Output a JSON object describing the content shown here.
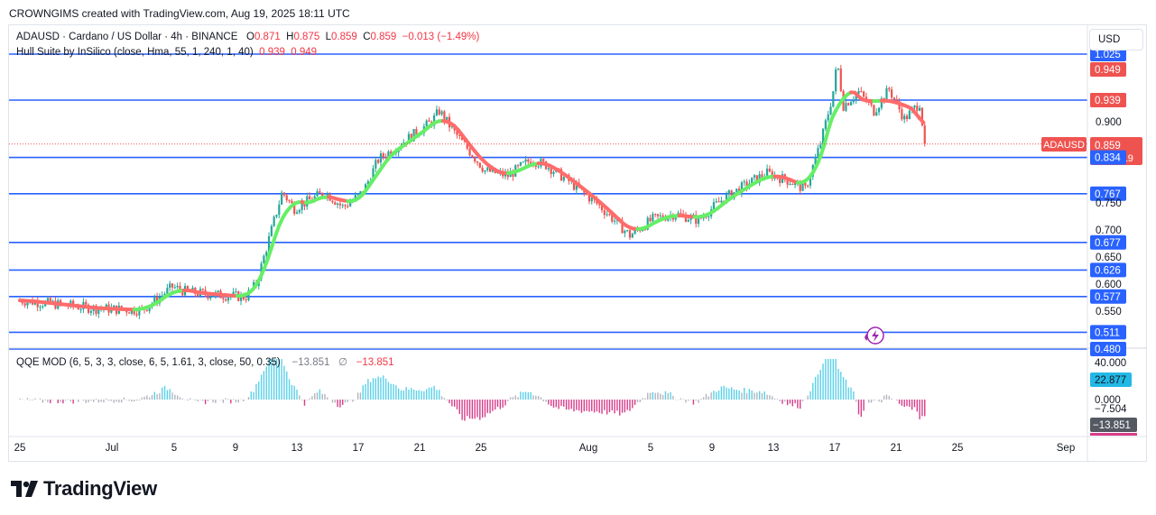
{
  "header": {
    "credit": "CROWNGIMS created with TradingView.com, Aug 19, 2025 18:11 UTC"
  },
  "legend": {
    "symbol": "ADAUSD · Cardano / US Dollar · 4h · BINANCE",
    "o_label": "O",
    "o_value": "0.871",
    "h_label": "H",
    "h_value": "0.875",
    "l_label": "L",
    "l_value": "0.859",
    "c_label": "C",
    "c_value": "0.859",
    "change": "−0.013 (−1.49%)",
    "indicator": "Hull Suite by InSilico (close, Hma, 55, 1, 240, 1, 40)",
    "ind_val1": "0.939",
    "ind_val2": "0.949",
    "qqe_name": "QQE MOD (6, 5, 3, 3, close, 6, 5, 1.61, 3, close, 50, 0.35)",
    "qqe_val1": "−13.851",
    "qqe_sym": "∅",
    "qqe_val2": "−13.851"
  },
  "currency_button": "USD",
  "branding": {
    "logo_text": "TradingView"
  },
  "colors": {
    "up": "#26a69a",
    "down": "#ef5350",
    "level": "#2962ff",
    "hull_up": "#66ee66",
    "hull_down": "#ff6b6b",
    "qqe_up": "#5ad0e8",
    "qqe_neutral": "#b2b5be",
    "qqe_down": "#d63d8a"
  },
  "chart_data": {
    "type": "candlestick",
    "symbol": "ADAUSD",
    "timeframe": "4h",
    "x_ticks": [
      "25",
      "Jul",
      "5",
      "9",
      "13",
      "17",
      "21",
      "25",
      "Aug",
      "5",
      "9",
      "13",
      "17",
      "21",
      "25",
      "Sep"
    ],
    "y_ticks": [
      "0.900",
      "0.750",
      "0.700",
      "0.650",
      "0.600",
      "0.550"
    ],
    "horizontal_levels": [
      "1.025",
      "0.940",
      "0.834",
      "0.767",
      "0.677",
      "0.626",
      "0.577",
      "0.511",
      "0.480"
    ],
    "price_labels": [
      {
        "text": "1.025",
        "kind": "level"
      },
      {
        "text": "0.949",
        "kind": "hull-red"
      },
      {
        "text": "0.940",
        "kind": "level"
      },
      {
        "text": "0.939",
        "kind": "hull-red"
      },
      {
        "text": "0.900",
        "kind": "tick"
      },
      {
        "text": "0.859",
        "kind": "price",
        "ticker": "ADAUSD",
        "countdown": "01:48:19"
      },
      {
        "text": "0.834",
        "kind": "level"
      },
      {
        "text": "0.767",
        "kind": "level"
      },
      {
        "text": "0.750",
        "kind": "tick"
      },
      {
        "text": "0.700",
        "kind": "tick"
      },
      {
        "text": "0.677",
        "kind": "level"
      },
      {
        "text": "0.650",
        "kind": "tick"
      },
      {
        "text": "0.626",
        "kind": "level"
      },
      {
        "text": "0.600",
        "kind": "tick"
      },
      {
        "text": "0.577",
        "kind": "level"
      },
      {
        "text": "0.550",
        "kind": "tick"
      },
      {
        "text": "0.511",
        "kind": "level"
      },
      {
        "text": "0.480",
        "kind": "level"
      }
    ],
    "path_anchors": [
      {
        "day": 0,
        "price": 0.57
      },
      {
        "day": 5,
        "price": 0.555
      },
      {
        "day": 8,
        "price": 0.552
      },
      {
        "day": 9,
        "price": 0.572
      },
      {
        "day": 10,
        "price": 0.595
      },
      {
        "day": 11,
        "price": 0.585
      },
      {
        "day": 13,
        "price": 0.58
      },
      {
        "day": 14.8,
        "price": 0.576
      },
      {
        "day": 15.5,
        "price": 0.6
      },
      {
        "day": 16.5,
        "price": 0.7
      },
      {
        "day": 17.2,
        "price": 0.77
      },
      {
        "day": 18,
        "price": 0.74
      },
      {
        "day": 20,
        "price": 0.77
      },
      {
        "day": 21.2,
        "price": 0.742
      },
      {
        "day": 22.5,
        "price": 0.77
      },
      {
        "day": 23.5,
        "price": 0.83
      },
      {
        "day": 25,
        "price": 0.86
      },
      {
        "day": 27,
        "price": 0.9
      },
      {
        "day": 27.5,
        "price": 0.92
      },
      {
        "day": 28.5,
        "price": 0.88
      },
      {
        "day": 30.5,
        "price": 0.81
      },
      {
        "day": 32,
        "price": 0.8
      },
      {
        "day": 33.5,
        "price": 0.83
      },
      {
        "day": 34.5,
        "price": 0.82
      },
      {
        "day": 36,
        "price": 0.79
      },
      {
        "day": 38,
        "price": 0.745
      },
      {
        "day": 40,
        "price": 0.69
      },
      {
        "day": 41.5,
        "price": 0.72
      },
      {
        "day": 43,
        "price": 0.73
      },
      {
        "day": 44.5,
        "price": 0.718
      },
      {
        "day": 46,
        "price": 0.755
      },
      {
        "day": 48,
        "price": 0.79
      },
      {
        "day": 49,
        "price": 0.805
      },
      {
        "day": 50.5,
        "price": 0.79
      },
      {
        "day": 51.5,
        "price": 0.775
      },
      {
        "day": 52.5,
        "price": 0.86
      },
      {
        "day": 53.3,
        "price": 0.95
      },
      {
        "day": 53.6,
        "price": 1.01
      },
      {
        "day": 54,
        "price": 0.93
      },
      {
        "day": 55,
        "price": 0.955
      },
      {
        "day": 56,
        "price": 0.92
      },
      {
        "day": 57,
        "price": 0.96
      },
      {
        "day": 58,
        "price": 0.905
      },
      {
        "day": 59,
        "price": 0.935
      },
      {
        "day": 59.3,
        "price": 0.87
      },
      {
        "day": 59.45,
        "price": 0.859
      }
    ],
    "last_price": 0.859,
    "ylim": [
      0.48,
      1.025
    ],
    "qqe": {
      "ylabels": [
        "40.000",
        "0.000",
        "−7.504"
      ],
      "badges": [
        "22.877",
        "−13.851"
      ],
      "ylim": [
        -30,
        45
      ]
    }
  }
}
